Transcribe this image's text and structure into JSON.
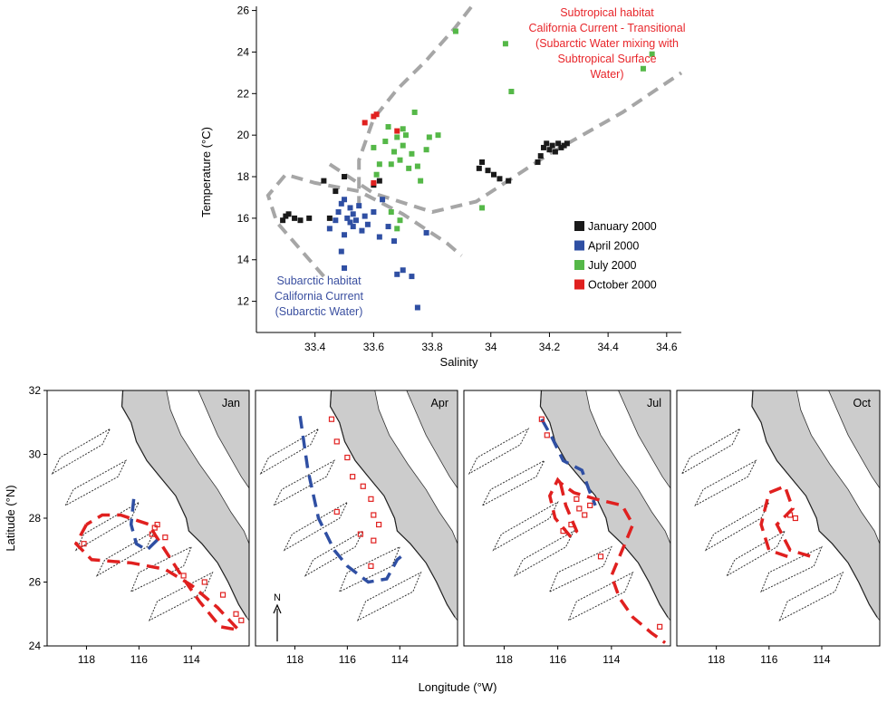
{
  "chart_data": [
    {
      "type": "scatter",
      "xlabel": "Salinity",
      "ylabel": "Temperature (°C)",
      "xlim": [
        33.2,
        34.65
      ],
      "ylim": [
        10.5,
        26.2
      ],
      "xticks": [
        "33.4",
        "33.6",
        "33.8",
        "34",
        "34.2",
        "34.4",
        "34.6"
      ],
      "xtick_values": [
        33.4,
        33.6,
        33.8,
        34.0,
        34.2,
        34.4,
        34.6
      ],
      "yticks": [
        "12",
        "14",
        "16",
        "18",
        "20",
        "22",
        "24",
        "26"
      ],
      "ytick_values": [
        12,
        14,
        16,
        18,
        20,
        22,
        24,
        26
      ],
      "legend_position": "bottom-right",
      "annotations": {
        "subtropical": [
          "Subtropical habitat",
          "California Current - Transitional",
          "(Subarctic Water mixing with",
          "Subtropical Surface",
          "Water)"
        ],
        "subarctic": [
          "Subarctic habitat",
          "California Current",
          "(Subarctic Water)"
        ]
      },
      "annotation_colors": {
        "subtropical": "#e8262b",
        "subarctic": "#3a4fa0"
      },
      "habitat_boundary_color": "#a6a6a6",
      "series": [
        {
          "name": "January 2000",
          "color": "#1a1a1a",
          "points": [
            [
              33.29,
              15.9
            ],
            [
              33.3,
              16.1
            ],
            [
              33.31,
              16.2
            ],
            [
              33.33,
              16.0
            ],
            [
              33.35,
              15.9
            ],
            [
              33.38,
              16.0
            ],
            [
              33.43,
              17.8
            ],
            [
              33.45,
              16.0
            ],
            [
              33.47,
              17.3
            ],
            [
              33.5,
              18.0
            ],
            [
              33.6,
              17.6
            ],
            [
              33.62,
              17.8
            ],
            [
              33.96,
              18.4
            ],
            [
              33.97,
              18.7
            ],
            [
              33.99,
              18.3
            ],
            [
              34.01,
              18.1
            ],
            [
              34.03,
              17.9
            ],
            [
              34.06,
              17.8
            ],
            [
              34.16,
              18.7
            ],
            [
              34.17,
              19.0
            ],
            [
              34.18,
              19.4
            ],
            [
              34.19,
              19.6
            ],
            [
              34.2,
              19.3
            ],
            [
              34.21,
              19.5
            ],
            [
              34.22,
              19.2
            ],
            [
              34.23,
              19.6
            ],
            [
              34.24,
              19.4
            ],
            [
              34.25,
              19.5
            ],
            [
              34.26,
              19.6
            ]
          ]
        },
        {
          "name": "April 2000",
          "color": "#2f4fa3",
          "points": [
            [
              33.45,
              15.5
            ],
            [
              33.47,
              15.9
            ],
            [
              33.48,
              16.3
            ],
            [
              33.49,
              16.7
            ],
            [
              33.5,
              15.2
            ],
            [
              33.5,
              16.9
            ],
            [
              33.51,
              16.0
            ],
            [
              33.52,
              15.8
            ],
            [
              33.52,
              16.5
            ],
            [
              33.53,
              15.6
            ],
            [
              33.53,
              16.2
            ],
            [
              33.54,
              15.9
            ],
            [
              33.55,
              16.6
            ],
            [
              33.56,
              15.4
            ],
            [
              33.57,
              16.1
            ],
            [
              33.58,
              15.7
            ],
            [
              33.6,
              16.3
            ],
            [
              33.62,
              15.1
            ],
            [
              33.65,
              15.6
            ],
            [
              33.67,
              14.9
            ],
            [
              33.5,
              13.6
            ],
            [
              33.49,
              14.4
            ],
            [
              33.68,
              13.3
            ],
            [
              33.7,
              13.5
            ],
            [
              33.73,
              13.2
            ],
            [
              33.75,
              11.7
            ],
            [
              33.78,
              15.3
            ],
            [
              33.63,
              16.9
            ]
          ]
        },
        {
          "name": "July 2000",
          "color": "#55b848",
          "points": [
            [
              33.64,
              19.7
            ],
            [
              33.65,
              20.4
            ],
            [
              33.66,
              18.6
            ],
            [
              33.67,
              19.2
            ],
            [
              33.68,
              19.9
            ],
            [
              33.69,
              18.8
            ],
            [
              33.7,
              19.5
            ],
            [
              33.71,
              20.0
            ],
            [
              33.72,
              18.4
            ],
            [
              33.73,
              19.1
            ],
            [
              33.74,
              21.1
            ],
            [
              33.75,
              18.5
            ],
            [
              33.76,
              17.8
            ],
            [
              33.78,
              19.3
            ],
            [
              33.79,
              19.9
            ],
            [
              33.82,
              20.0
            ],
            [
              33.88,
              25.0
            ],
            [
              33.97,
              16.5
            ],
            [
              34.05,
              24.4
            ],
            [
              34.07,
              22.1
            ],
            [
              34.52,
              23.2
            ],
            [
              34.55,
              23.9
            ],
            [
              33.68,
              15.5
            ],
            [
              33.69,
              15.9
            ],
            [
              33.6,
              19.4
            ],
            [
              33.62,
              18.6
            ],
            [
              33.7,
              20.3
            ],
            [
              33.66,
              16.3
            ],
            [
              33.61,
              18.1
            ]
          ]
        },
        {
          "name": "October 2000",
          "color": "#e0201f",
          "points": [
            [
              33.57,
              20.6
            ],
            [
              33.6,
              20.9
            ],
            [
              33.61,
              21.0
            ],
            [
              33.68,
              20.2
            ],
            [
              33.6,
              17.7
            ]
          ]
        }
      ],
      "habitat_boundaries": [
        {
          "name": "subtropical-boundary",
          "points": [
            [
              33.55,
              16.5
            ],
            [
              33.55,
              18.8
            ],
            [
              33.6,
              20.8
            ],
            [
              33.68,
              22.2
            ],
            [
              33.78,
              23.6
            ],
            [
              33.88,
              25.2
            ],
            [
              33.94,
              26.3
            ]
          ]
        },
        {
          "name": "subtropical-boundary",
          "points": [
            [
              33.45,
              18.6
            ],
            [
              33.6,
              17.2
            ],
            [
              33.8,
              16.3
            ],
            [
              33.95,
              16.8
            ],
            [
              34.2,
              19.1
            ],
            [
              34.45,
              21.1
            ],
            [
              34.65,
              23.0
            ]
          ]
        },
        {
          "name": "subarctic-boundary",
          "points": [
            [
              33.43,
              13.2
            ],
            [
              33.35,
              14.5
            ],
            [
              33.27,
              15.8
            ],
            [
              33.24,
              17.1
            ],
            [
              33.3,
              18.1
            ],
            [
              33.4,
              17.7
            ],
            [
              33.55,
              17.3
            ],
            [
              33.7,
              16.2
            ],
            [
              33.85,
              14.8
            ],
            [
              33.9,
              14.2
            ]
          ]
        }
      ]
    },
    {
      "type": "map",
      "xlabel": "Longitude (°W)",
      "ylabel": "Latitude (°N)",
      "xlim": [
        119.5,
        111.8
      ],
      "ylim": [
        24,
        32
      ],
      "xticks": [
        "118",
        "116",
        "114"
      ],
      "xtick_values": [
        118,
        116,
        114
      ],
      "yticks": [
        "24",
        "26",
        "28",
        "30",
        "32"
      ],
      "ytick_values": [
        24,
        26,
        28,
        30,
        32
      ],
      "north_arrow_label": "N",
      "land_color": "#cccccc",
      "habitat_colors": {
        "subtropical": "#e0201f",
        "subarctic": "#2f4fa3"
      },
      "panels": [
        {
          "label": "Jan",
          "subtropical": [
            [
              118.0,
              27.8
            ],
            [
              118.4,
              27.2
            ],
            [
              117.8,
              26.7
            ],
            [
              116.3,
              26.6
            ],
            [
              115.0,
              26.4
            ],
            [
              114.0,
              25.9
            ],
            [
              113.0,
              25.2
            ],
            [
              112.2,
              24.5
            ],
            [
              112.9,
              24.6
            ],
            [
              113.7,
              25.4
            ],
            [
              114.3,
              26.1
            ],
            [
              115.4,
              27.5
            ],
            [
              115.6,
              27.8
            ],
            [
              116.7,
              28.1
            ],
            [
              117.4,
              28.1
            ],
            [
              118.0,
              27.8
            ]
          ],
          "subarctic": [
            [
              116.2,
              28.6
            ],
            [
              116.3,
              27.8
            ],
            [
              116.1,
              27.2
            ],
            [
              115.7,
              27.0
            ],
            [
              115.2,
              27.4
            ]
          ],
          "stations": [
            [
              115.4,
              27.7
            ],
            [
              115.5,
              27.5
            ],
            [
              115.3,
              27.8
            ],
            [
              114.3,
              26.2
            ],
            [
              113.5,
              26.0
            ],
            [
              112.8,
              25.6
            ],
            [
              112.3,
              25.0
            ],
            [
              112.1,
              24.8
            ],
            [
              118.1,
              27.2
            ],
            [
              115.0,
              27.4
            ]
          ]
        },
        {
          "label": "Apr",
          "subtropical": [],
          "subarctic": [
            [
              117.8,
              31.2
            ],
            [
              117.5,
              29.5
            ],
            [
              117.1,
              28.0
            ],
            [
              116.5,
              27.0
            ],
            [
              116.0,
              26.5
            ],
            [
              115.2,
              26.0
            ],
            [
              114.5,
              26.1
            ],
            [
              114.1,
              26.7
            ],
            [
              113.8,
              26.9
            ]
          ],
          "stations": [
            [
              116.6,
              31.1
            ],
            [
              116.4,
              30.4
            ],
            [
              116.0,
              29.9
            ],
            [
              115.4,
              29.0
            ],
            [
              115.1,
              28.6
            ],
            [
              115.0,
              28.1
            ],
            [
              114.8,
              27.8
            ],
            [
              115.0,
              27.3
            ],
            [
              115.5,
              27.5
            ],
            [
              116.4,
              28.2
            ],
            [
              115.1,
              26.5
            ],
            [
              115.8,
              29.3
            ]
          ]
        },
        {
          "label": "Jul",
          "subtropical": [
            [
              115.9,
              29.1
            ],
            [
              115.7,
              28.4
            ],
            [
              115.3,
              27.6
            ],
            [
              115.5,
              27.4
            ],
            [
              116.1,
              28.0
            ],
            [
              116.3,
              28.7
            ],
            [
              116.0,
              29.2
            ],
            [
              115.9,
              29.1
            ],
            [
              115.4,
              28.8
            ],
            [
              114.6,
              28.6
            ],
            [
              113.6,
              28.4
            ],
            [
              113.2,
              27.8
            ],
            [
              113.6,
              27.0
            ],
            [
              114.0,
              26.2
            ],
            [
              113.7,
              25.5
            ],
            [
              113.2,
              24.9
            ],
            [
              112.5,
              24.4
            ],
            [
              112.0,
              24.1
            ]
          ],
          "subarctic": [
            [
              116.6,
              31.1
            ],
            [
              116.2,
              30.5
            ],
            [
              115.8,
              29.8
            ],
            [
              115.1,
              29.5
            ],
            [
              114.8,
              28.8
            ],
            [
              114.6,
              28.4
            ]
          ],
          "stations": [
            [
              116.6,
              31.1
            ],
            [
              115.2,
              28.3
            ],
            [
              115.0,
              28.1
            ],
            [
              114.8,
              28.4
            ],
            [
              115.5,
              27.8
            ],
            [
              115.8,
              27.6
            ],
            [
              114.4,
              26.8
            ],
            [
              115.3,
              28.6
            ],
            [
              112.2,
              24.6
            ],
            [
              116.4,
              30.6
            ]
          ]
        },
        {
          "label": "Oct",
          "subtropical": [
            [
              115.3,
              26.8
            ],
            [
              116.0,
              27.0
            ],
            [
              116.3,
              27.8
            ],
            [
              116.0,
              28.8
            ],
            [
              115.4,
              29.0
            ],
            [
              115.1,
              28.3
            ],
            [
              115.7,
              27.8
            ],
            [
              115.2,
              27.0
            ],
            [
              114.4,
              26.8
            ]
          ],
          "subarctic": [],
          "stations": [
            [
              115.2,
              28.1
            ],
            [
              115.0,
              28.0
            ]
          ]
        }
      ]
    }
  ]
}
